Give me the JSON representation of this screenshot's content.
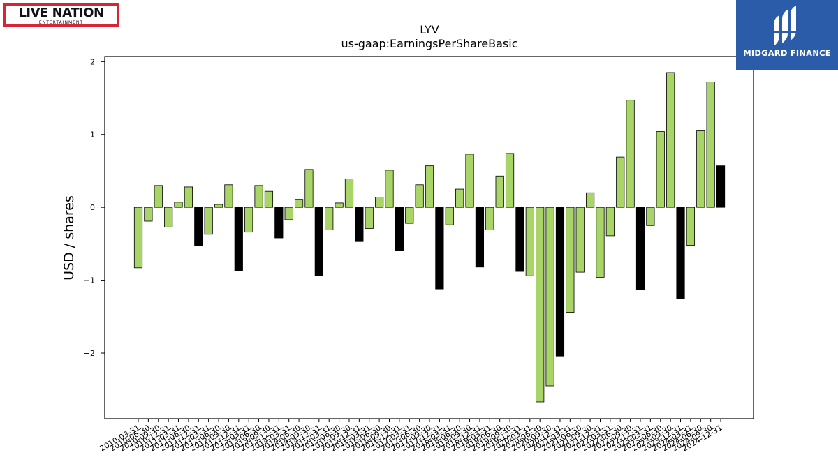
{
  "logos": {
    "left": {
      "main_text": "LIVE NATION",
      "sub_text": "ENTERTAINMENT"
    },
    "right": {
      "text": "MIDGARD FINANCE"
    },
    "colors": {
      "live_nation_red": "#d62536",
      "midgard_blue": "#2a5caa"
    }
  },
  "chart_data": {
    "type": "bar",
    "title": "LYV",
    "subtitle": "us-gaap:EarningsPerShareBasic",
    "xlabel": "",
    "ylabel": "USD / shares",
    "ylim": [
      -2.9,
      2.07
    ],
    "yticks": [
      -2,
      -1,
      0,
      1,
      2
    ],
    "ytick_labels": [
      "−2",
      "−1",
      "0",
      "1",
      "2"
    ],
    "grid": false,
    "legend": "none",
    "colors": {
      "quarterly": "#a8d468",
      "annual": "#000000",
      "edge": "#000000"
    },
    "categories": [
      "2010-03-31",
      "2010-06-30",
      "2010-09-30",
      "2010-12-31",
      "2011-03-31",
      "2011-06-30",
      "2011-12-31",
      "2012-03-31",
      "2012-06-30",
      "2012-09-30",
      "2012-12-31",
      "2013-03-31",
      "2013-06-30",
      "2013-09-30",
      "2013-12-31",
      "2014-03-31",
      "2014-06-30",
      "2014-09-30",
      "2014-12-31",
      "2015-03-31",
      "2015-06-30",
      "2015-09-30",
      "2015-12-31",
      "2016-03-31",
      "2016-06-30",
      "2016-09-30",
      "2016-12-31",
      "2017-03-31",
      "2017-06-30",
      "2017-09-30",
      "2017-12-31",
      "2018-03-31",
      "2018-06-30",
      "2018-09-30",
      "2018-12-31",
      "2019-03-31",
      "2019-06-30",
      "2019-09-30",
      "2019-12-31",
      "2020-03-31",
      "2020-06-30",
      "2020-09-30",
      "2020-12-31",
      "2021-03-31",
      "2021-06-30",
      "2021-09-30",
      "2021-12-31",
      "2022-03-31",
      "2022-06-30",
      "2022-09-30",
      "2022-12-31",
      "2023-03-31",
      "2023-06-30",
      "2023-09-30",
      "2023-12-31",
      "2024-03-31",
      "2024-06-30",
      "2024-09-30",
      "2024-12-31"
    ],
    "values": [
      -0.83,
      -0.19,
      0.3,
      -0.27,
      0.07,
      0.28,
      -0.53,
      -0.37,
      0.04,
      0.31,
      -0.87,
      -0.34,
      0.3,
      0.22,
      -0.42,
      -0.17,
      0.11,
      0.52,
      -0.94,
      -0.31,
      0.06,
      0.39,
      -0.47,
      -0.29,
      0.14,
      0.51,
      -0.59,
      -0.22,
      0.31,
      0.57,
      -1.12,
      -0.24,
      0.25,
      0.73,
      -0.82,
      -0.31,
      0.43,
      0.74,
      -0.88,
      -0.94,
      -2.67,
      -2.45,
      -2.04,
      -1.44,
      -0.89,
      0.2,
      -0.96,
      -0.39,
      0.69,
      1.47,
      -1.13,
      -0.25,
      1.04,
      1.85,
      -1.25,
      -0.52,
      1.05,
      1.72,
      0.57
    ],
    "annual": [
      false,
      false,
      false,
      false,
      false,
      false,
      true,
      false,
      false,
      false,
      true,
      false,
      false,
      false,
      true,
      false,
      false,
      false,
      true,
      false,
      false,
      false,
      true,
      false,
      false,
      false,
      true,
      false,
      false,
      false,
      true,
      false,
      false,
      false,
      true,
      false,
      false,
      false,
      true,
      false,
      false,
      false,
      true,
      false,
      false,
      false,
      false,
      false,
      false,
      false,
      true,
      false,
      false,
      false,
      true,
      false,
      false,
      false,
      true
    ]
  }
}
